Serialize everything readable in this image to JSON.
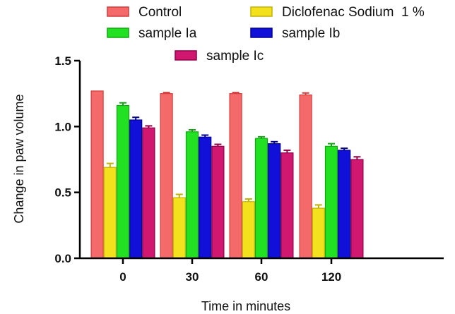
{
  "chart_data": {
    "type": "bar",
    "categories": [
      "0",
      "30",
      "60",
      "120"
    ],
    "series": [
      {
        "name": "Control",
        "color": "#F46A6A",
        "edge": "#D43A3A",
        "values": [
          1.27,
          1.25,
          1.25,
          1.24
        ],
        "errors": [
          0.0,
          0.008,
          0.008,
          0.015
        ]
      },
      {
        "name": "Diclofenac Sodium  1 %",
        "color": "#F2E11C",
        "edge": "#C2B200",
        "values": [
          0.69,
          0.46,
          0.43,
          0.38
        ],
        "errors": [
          0.03,
          0.025,
          0.02,
          0.025
        ]
      },
      {
        "name": "sample Ia",
        "color": "#22E022",
        "edge": "#10A810",
        "values": [
          1.16,
          0.96,
          0.91,
          0.85
        ],
        "errors": [
          0.02,
          0.015,
          0.012,
          0.02
        ]
      },
      {
        "name": "sample Ib",
        "color": "#1010D8",
        "edge": "#000090",
        "values": [
          1.05,
          0.92,
          0.87,
          0.82
        ],
        "errors": [
          0.02,
          0.015,
          0.015,
          0.015
        ]
      },
      {
        "name": "sample Ic",
        "color": "#D01870",
        "edge": "#900048",
        "values": [
          0.99,
          0.85,
          0.8,
          0.75
        ],
        "errors": [
          0.015,
          0.015,
          0.02,
          0.02
        ]
      }
    ],
    "xlabel": "Time in minutes",
    "ylabel": "Change in paw volume",
    "ylim": [
      0,
      1.5
    ],
    "yticks": [
      "0.0",
      "0.5",
      "1.0",
      "1.5"
    ],
    "grid": false,
    "legend_position": "top"
  }
}
